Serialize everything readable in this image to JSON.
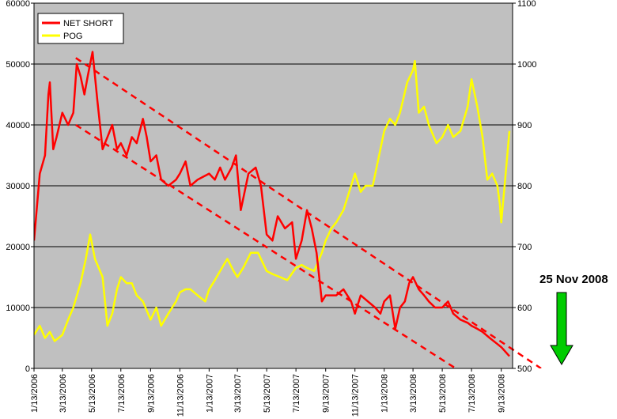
{
  "chart_data": {
    "type": "line",
    "title": "",
    "xlabel": "",
    "ylabel": "",
    "ylim_left": [
      0,
      60000
    ],
    "yticks_left": [
      "0",
      "10000",
      "20000",
      "30000",
      "40000",
      "50000",
      "60000"
    ],
    "ylim_right": [
      500,
      1100
    ],
    "yticks_right": [
      "500",
      "600",
      "700",
      "800",
      "900",
      "1000",
      "1100"
    ],
    "x_tick_labels": [
      "1/13/2006",
      "3/13/2006",
      "5/13/2006",
      "7/13/2006",
      "9/13/2006",
      "11/13/2006",
      "1/13/2007",
      "3/13/2007",
      "5/13/2007",
      "7/13/2007",
      "9/13/2007",
      "11/13/2007",
      "1/13/2008",
      "3/13/2008",
      "5/13/2008",
      "7/13/2008",
      "9/13/2008"
    ],
    "x_range": [
      "2006-01-13",
      "2008-09-30"
    ],
    "x_axis_end": "2008-12-10",
    "grid": true,
    "legend_placement": "top-left",
    "colors": {
      "plot_background": "#c0c0c0",
      "net_short": "#ff0000",
      "pog": "#ffff00",
      "arrow": "#00cc00"
    },
    "series": [
      {
        "name": "NET SHORT",
        "axis": "left",
        "points": [
          [
            "2006-01-13",
            21000
          ],
          [
            "2006-01-25",
            32000
          ],
          [
            "2006-02-05",
            35000
          ],
          [
            "2006-02-12",
            45000
          ],
          [
            "2006-02-15",
            47000
          ],
          [
            "2006-02-22",
            36000
          ],
          [
            "2006-03-01",
            38000
          ],
          [
            "2006-03-13",
            42000
          ],
          [
            "2006-03-25",
            40000
          ],
          [
            "2006-04-05",
            42000
          ],
          [
            "2006-04-12",
            50000
          ],
          [
            "2006-04-20",
            48000
          ],
          [
            "2006-04-28",
            45000
          ],
          [
            "2006-05-05",
            48000
          ],
          [
            "2006-05-15",
            52000
          ],
          [
            "2006-05-25",
            44000
          ],
          [
            "2006-06-05",
            36000
          ],
          [
            "2006-06-15",
            38000
          ],
          [
            "2006-06-25",
            40000
          ],
          [
            "2006-07-05",
            36000
          ],
          [
            "2006-07-13",
            37000
          ],
          [
            "2006-07-25",
            35000
          ],
          [
            "2006-08-05",
            38000
          ],
          [
            "2006-08-15",
            37000
          ],
          [
            "2006-08-28",
            41000
          ],
          [
            "2006-09-05",
            38000
          ],
          [
            "2006-09-13",
            34000
          ],
          [
            "2006-09-25",
            35000
          ],
          [
            "2006-10-05",
            31000
          ],
          [
            "2006-10-20",
            30000
          ],
          [
            "2006-11-05",
            31000
          ],
          [
            "2006-11-13",
            32000
          ],
          [
            "2006-11-25",
            34000
          ],
          [
            "2006-12-05",
            30000
          ],
          [
            "2006-12-20",
            31000
          ],
          [
            "2007-01-13",
            32000
          ],
          [
            "2007-01-25",
            31000
          ],
          [
            "2007-02-05",
            33000
          ],
          [
            "2007-02-15",
            31000
          ],
          [
            "2007-03-01",
            33000
          ],
          [
            "2007-03-10",
            35000
          ],
          [
            "2007-03-20",
            26000
          ],
          [
            "2007-04-05",
            32000
          ],
          [
            "2007-04-20",
            33000
          ],
          [
            "2007-05-01",
            30000
          ],
          [
            "2007-05-13",
            22000
          ],
          [
            "2007-05-25",
            21000
          ],
          [
            "2007-06-05",
            25000
          ],
          [
            "2007-06-20",
            23000
          ],
          [
            "2007-07-05",
            24000
          ],
          [
            "2007-07-13",
            18000
          ],
          [
            "2007-07-25",
            21000
          ],
          [
            "2007-08-05",
            26000
          ],
          [
            "2007-08-15",
            23000
          ],
          [
            "2007-08-25",
            19000
          ],
          [
            "2007-09-05",
            11000
          ],
          [
            "2007-09-13",
            12000
          ],
          [
            "2007-10-05",
            12000
          ],
          [
            "2007-10-20",
            13000
          ],
          [
            "2007-11-05",
            11000
          ],
          [
            "2007-11-13",
            9000
          ],
          [
            "2007-11-25",
            12000
          ],
          [
            "2007-12-10",
            11000
          ],
          [
            "2007-12-25",
            10000
          ],
          [
            "2008-01-05",
            9000
          ],
          [
            "2008-01-13",
            11000
          ],
          [
            "2008-01-25",
            12000
          ],
          [
            "2008-02-05",
            6500
          ],
          [
            "2008-02-15",
            10000
          ],
          [
            "2008-02-25",
            11000
          ],
          [
            "2008-03-05",
            14000
          ],
          [
            "2008-03-13",
            15000
          ],
          [
            "2008-03-25",
            13000
          ],
          [
            "2008-04-05",
            12000
          ],
          [
            "2008-04-15",
            11000
          ],
          [
            "2008-04-28",
            10000
          ],
          [
            "2008-05-13",
            10000
          ],
          [
            "2008-05-25",
            11000
          ],
          [
            "2008-06-05",
            9000
          ],
          [
            "2008-06-20",
            8000
          ],
          [
            "2008-07-05",
            7500
          ],
          [
            "2008-07-13",
            7000
          ],
          [
            "2008-07-25",
            6500
          ],
          [
            "2008-08-05",
            6000
          ],
          [
            "2008-08-20",
            5000
          ],
          [
            "2008-09-05",
            4000
          ],
          [
            "2008-09-13",
            3500
          ],
          [
            "2008-09-30",
            2000
          ]
        ]
      },
      {
        "name": "POG",
        "axis": "right",
        "points": [
          [
            "2006-01-13",
            555
          ],
          [
            "2006-01-25",
            570
          ],
          [
            "2006-02-05",
            550
          ],
          [
            "2006-02-15",
            560
          ],
          [
            "2006-02-25",
            545
          ],
          [
            "2006-03-13",
            555
          ],
          [
            "2006-03-25",
            580
          ],
          [
            "2006-04-05",
            600
          ],
          [
            "2006-04-20",
            640
          ],
          [
            "2006-05-01",
            680
          ],
          [
            "2006-05-10",
            720
          ],
          [
            "2006-05-20",
            680
          ],
          [
            "2006-06-05",
            650
          ],
          [
            "2006-06-15",
            570
          ],
          [
            "2006-06-25",
            590
          ],
          [
            "2006-07-05",
            630
          ],
          [
            "2006-07-13",
            650
          ],
          [
            "2006-07-25",
            640
          ],
          [
            "2006-08-05",
            640
          ],
          [
            "2006-08-15",
            620
          ],
          [
            "2006-08-28",
            610
          ],
          [
            "2006-09-13",
            580
          ],
          [
            "2006-09-25",
            600
          ],
          [
            "2006-10-05",
            570
          ],
          [
            "2006-10-20",
            590
          ],
          [
            "2006-11-05",
            610
          ],
          [
            "2006-11-13",
            625
          ],
          [
            "2006-11-25",
            630
          ],
          [
            "2006-12-05",
            630
          ],
          [
            "2006-12-20",
            620
          ],
          [
            "2007-01-05",
            610
          ],
          [
            "2007-01-13",
            630
          ],
          [
            "2007-01-25",
            645
          ],
          [
            "2007-02-05",
            660
          ],
          [
            "2007-02-20",
            680
          ],
          [
            "2007-03-05",
            660
          ],
          [
            "2007-03-13",
            650
          ],
          [
            "2007-03-25",
            665
          ],
          [
            "2007-04-10",
            690
          ],
          [
            "2007-04-25",
            690
          ],
          [
            "2007-05-13",
            660
          ],
          [
            "2007-05-25",
            655
          ],
          [
            "2007-06-10",
            650
          ],
          [
            "2007-06-25",
            645
          ],
          [
            "2007-07-13",
            665
          ],
          [
            "2007-07-25",
            670
          ],
          [
            "2007-08-05",
            665
          ],
          [
            "2007-08-20",
            660
          ],
          [
            "2007-09-05",
            690
          ],
          [
            "2007-09-13",
            710
          ],
          [
            "2007-09-25",
            730
          ],
          [
            "2007-10-05",
            740
          ],
          [
            "2007-10-20",
            760
          ],
          [
            "2007-11-05",
            800
          ],
          [
            "2007-11-13",
            820
          ],
          [
            "2007-11-25",
            790
          ],
          [
            "2007-12-05",
            800
          ],
          [
            "2007-12-20",
            800
          ],
          [
            "2008-01-05",
            860
          ],
          [
            "2008-01-13",
            890
          ],
          [
            "2008-01-25",
            910
          ],
          [
            "2008-02-05",
            900
          ],
          [
            "2008-02-15",
            920
          ],
          [
            "2008-03-01",
            970
          ],
          [
            "2008-03-13",
            990
          ],
          [
            "2008-03-17",
            1005
          ],
          [
            "2008-03-25",
            920
          ],
          [
            "2008-04-05",
            930
          ],
          [
            "2008-04-15",
            900
          ],
          [
            "2008-05-01",
            870
          ],
          [
            "2008-05-13",
            880
          ],
          [
            "2008-05-25",
            900
          ],
          [
            "2008-06-05",
            880
          ],
          [
            "2008-06-20",
            890
          ],
          [
            "2008-07-05",
            930
          ],
          [
            "2008-07-13",
            975
          ],
          [
            "2008-07-25",
            930
          ],
          [
            "2008-08-05",
            880
          ],
          [
            "2008-08-15",
            810
          ],
          [
            "2008-08-25",
            820
          ],
          [
            "2008-09-05",
            800
          ],
          [
            "2008-09-10",
            770
          ],
          [
            "2008-09-13",
            740
          ],
          [
            "2008-09-20",
            800
          ],
          [
            "2008-09-30",
            890
          ]
        ]
      },
      {
        "name": "",
        "axis": "left",
        "style": "dashed",
        "points": [
          [
            "2006-04-10",
            51000
          ],
          [
            "2008-12-05",
            0
          ]
        ]
      },
      {
        "name": "",
        "axis": "left",
        "style": "dashed",
        "points": [
          [
            "2006-04-10",
            40000
          ],
          [
            "2008-06-10",
            0
          ]
        ]
      }
    ],
    "annotations": [
      {
        "text": "25 Nov 2008",
        "points_to": "2008-11-25"
      }
    ]
  }
}
